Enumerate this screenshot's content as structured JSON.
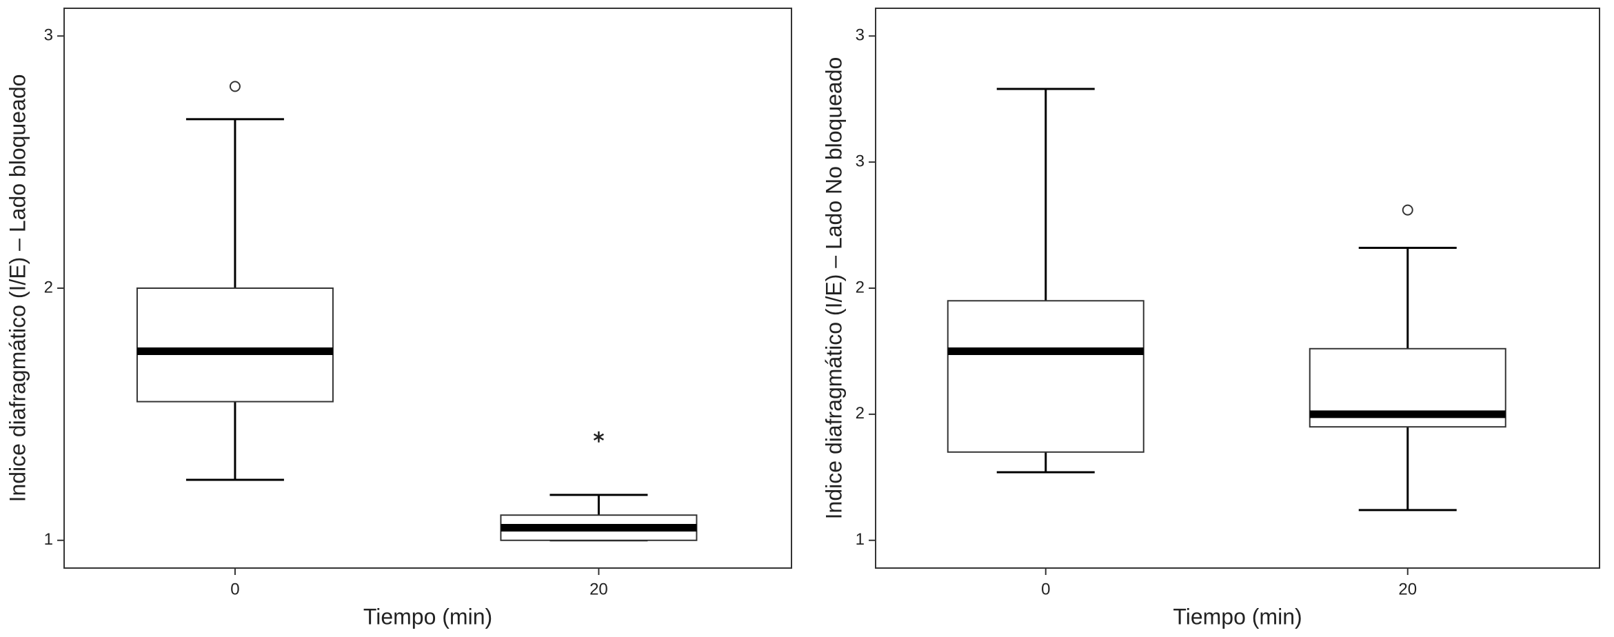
{
  "chart_data": [
    {
      "type": "box",
      "y_label": "Indice diafragmático (I/E) – Lado bloqueado",
      "x_label": "Tiempo (min)",
      "categories": [
        "0",
        "20"
      ],
      "ylim": [
        0.89,
        3.11
      ],
      "yticks": [
        1,
        2,
        3
      ],
      "boxes": [
        {
          "whisker_low": 1.24,
          "q1": 1.55,
          "median": 1.75,
          "q3": 2.0,
          "whisker_high": 2.67,
          "outliers": [
            2.8
          ],
          "extremes": []
        },
        {
          "whisker_low": 1.0,
          "q1": 1.0,
          "median": 1.05,
          "q3": 1.1,
          "whisker_high": 1.18,
          "outliers": [],
          "extremes": [
            1.41
          ]
        }
      ]
    },
    {
      "type": "box",
      "y_label": "Indice diafragmático (I/E) – Lado No bloqueado",
      "x_label": "Tiempo (min)",
      "categories": [
        "0",
        "20"
      ],
      "ylim": [
        0.89,
        3.11
      ],
      "yticks": [
        {
          "value": 1,
          "label": "1"
        },
        {
          "value": 1.5,
          "label": "2"
        },
        {
          "value": 2,
          "label": "2"
        },
        {
          "value": 2.5,
          "label": "3"
        },
        {
          "value": 3,
          "label": "3"
        }
      ],
      "boxes": [
        {
          "whisker_low": 1.27,
          "q1": 1.35,
          "median": 1.75,
          "q3": 1.95,
          "whisker_high": 2.79,
          "outliers": [],
          "extremes": []
        },
        {
          "whisker_low": 1.12,
          "q1": 1.45,
          "median": 1.5,
          "q3": 1.76,
          "whisker_high": 2.16,
          "outliers": [
            2.31
          ],
          "extremes": []
        }
      ]
    }
  ]
}
